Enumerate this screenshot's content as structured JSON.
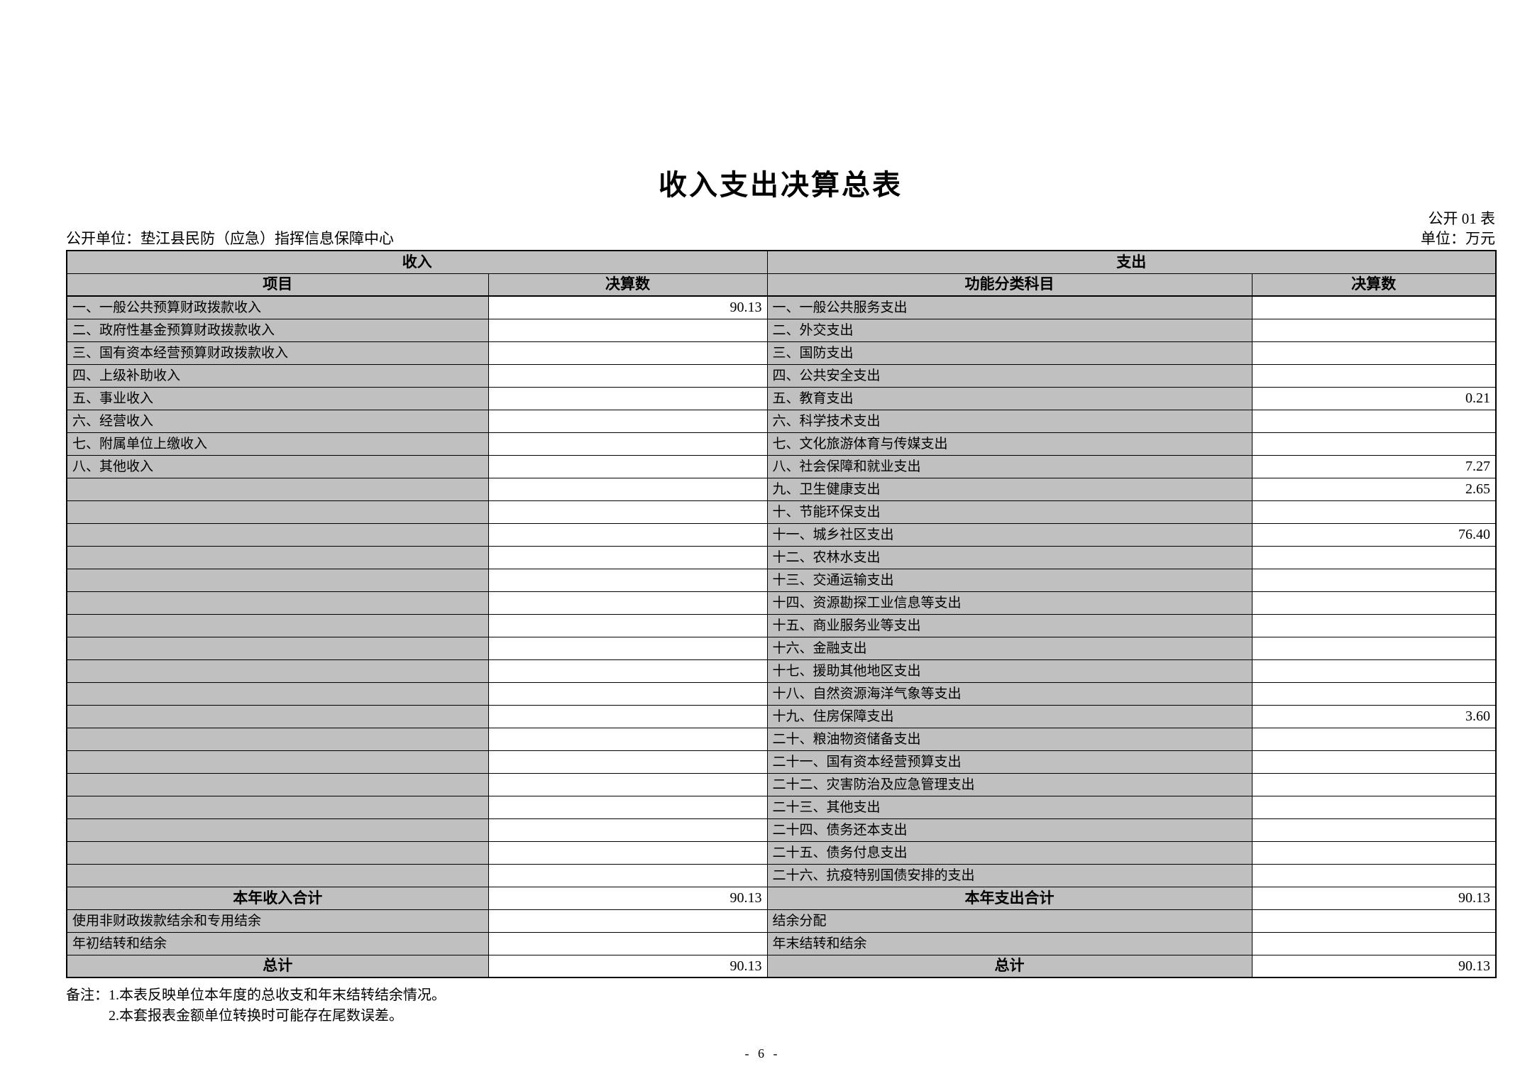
{
  "header": {
    "title": "收入支出决算总表",
    "sheet_code": "公开 01 表",
    "org": "公开单位：垫江县民防（应急）指挥信息保障中心",
    "unit": "单位：万元"
  },
  "income": {
    "section_title": "收入",
    "col_item": "项目",
    "col_amount": "决算数",
    "rows": [
      {
        "label": "一、一般公共预算财政拨款收入",
        "value": "90.13"
      },
      {
        "label": "二、政府性基金预算财政拨款收入",
        "value": ""
      },
      {
        "label": "三、国有资本经营预算财政拨款收入",
        "value": ""
      },
      {
        "label": "四、上级补助收入",
        "value": ""
      },
      {
        "label": "五、事业收入",
        "value": ""
      },
      {
        "label": "六、经营收入",
        "value": ""
      },
      {
        "label": "七、附属单位上缴收入",
        "value": ""
      },
      {
        "label": "八、其他收入",
        "value": ""
      },
      {
        "label": "",
        "value": ""
      },
      {
        "label": "",
        "value": ""
      },
      {
        "label": "",
        "value": ""
      },
      {
        "label": "",
        "value": ""
      },
      {
        "label": "",
        "value": ""
      },
      {
        "label": "",
        "value": ""
      },
      {
        "label": "",
        "value": ""
      },
      {
        "label": "",
        "value": ""
      },
      {
        "label": "",
        "value": ""
      },
      {
        "label": "",
        "value": ""
      },
      {
        "label": "",
        "value": ""
      },
      {
        "label": "",
        "value": ""
      },
      {
        "label": "",
        "value": ""
      },
      {
        "label": "",
        "value": ""
      },
      {
        "label": "",
        "value": ""
      },
      {
        "label": "",
        "value": ""
      },
      {
        "label": "",
        "value": ""
      },
      {
        "label": "",
        "value": ""
      }
    ],
    "total_label": "本年收入合计",
    "total_value": "90.13",
    "carryover_rows": [
      {
        "label": "使用非财政拨款结余和专用结余",
        "value": ""
      },
      {
        "label": "年初结转和结余",
        "value": ""
      }
    ],
    "grand_total_label": "总计",
    "grand_total_value": "90.13"
  },
  "expense": {
    "section_title": "支出",
    "col_item": "功能分类科目",
    "col_amount": "决算数",
    "rows": [
      {
        "label": "一、一般公共服务支出",
        "value": ""
      },
      {
        "label": "二、外交支出",
        "value": ""
      },
      {
        "label": "三、国防支出",
        "value": ""
      },
      {
        "label": "四、公共安全支出",
        "value": ""
      },
      {
        "label": "五、教育支出",
        "value": "0.21"
      },
      {
        "label": "六、科学技术支出",
        "value": ""
      },
      {
        "label": "七、文化旅游体育与传媒支出",
        "value": ""
      },
      {
        "label": "八、社会保障和就业支出",
        "value": "7.27"
      },
      {
        "label": "九、卫生健康支出",
        "value": "2.65"
      },
      {
        "label": "十、节能环保支出",
        "value": ""
      },
      {
        "label": "十一、城乡社区支出",
        "value": "76.40"
      },
      {
        "label": "十二、农林水支出",
        "value": ""
      },
      {
        "label": "十三、交通运输支出",
        "value": ""
      },
      {
        "label": "十四、资源勘探工业信息等支出",
        "value": ""
      },
      {
        "label": "十五、商业服务业等支出",
        "value": ""
      },
      {
        "label": "十六、金融支出",
        "value": ""
      },
      {
        "label": "十七、援助其他地区支出",
        "value": ""
      },
      {
        "label": "十八、自然资源海洋气象等支出",
        "value": ""
      },
      {
        "label": "十九、住房保障支出",
        "value": "3.60"
      },
      {
        "label": "二十、粮油物资储备支出",
        "value": ""
      },
      {
        "label": "二十一、国有资本经营预算支出",
        "value": ""
      },
      {
        "label": "二十二、灾害防治及应急管理支出",
        "value": ""
      },
      {
        "label": "二十三、其他支出",
        "value": ""
      },
      {
        "label": "二十四、债务还本支出",
        "value": ""
      },
      {
        "label": "二十五、债务付息支出",
        "value": ""
      },
      {
        "label": "二十六、抗疫特别国债安排的支出",
        "value": ""
      }
    ],
    "total_label": "本年支出合计",
    "total_value": "90.13",
    "carryover_rows": [
      {
        "label": "结余分配",
        "value": ""
      },
      {
        "label": "年末结转和结余",
        "value": ""
      }
    ],
    "grand_total_label": "总计",
    "grand_total_value": "90.13"
  },
  "notes": {
    "label": "备注：",
    "lines": [
      "1.本表反映单位本年度的总收支和年末结转结余情况。",
      "2.本套报表金额单位转换时可能存在尾数误差。"
    ]
  },
  "page_number": "- 6 -",
  "colors": {
    "cell_gray": "#c0c0c0",
    "border": "#000000",
    "background": "#ffffff"
  }
}
